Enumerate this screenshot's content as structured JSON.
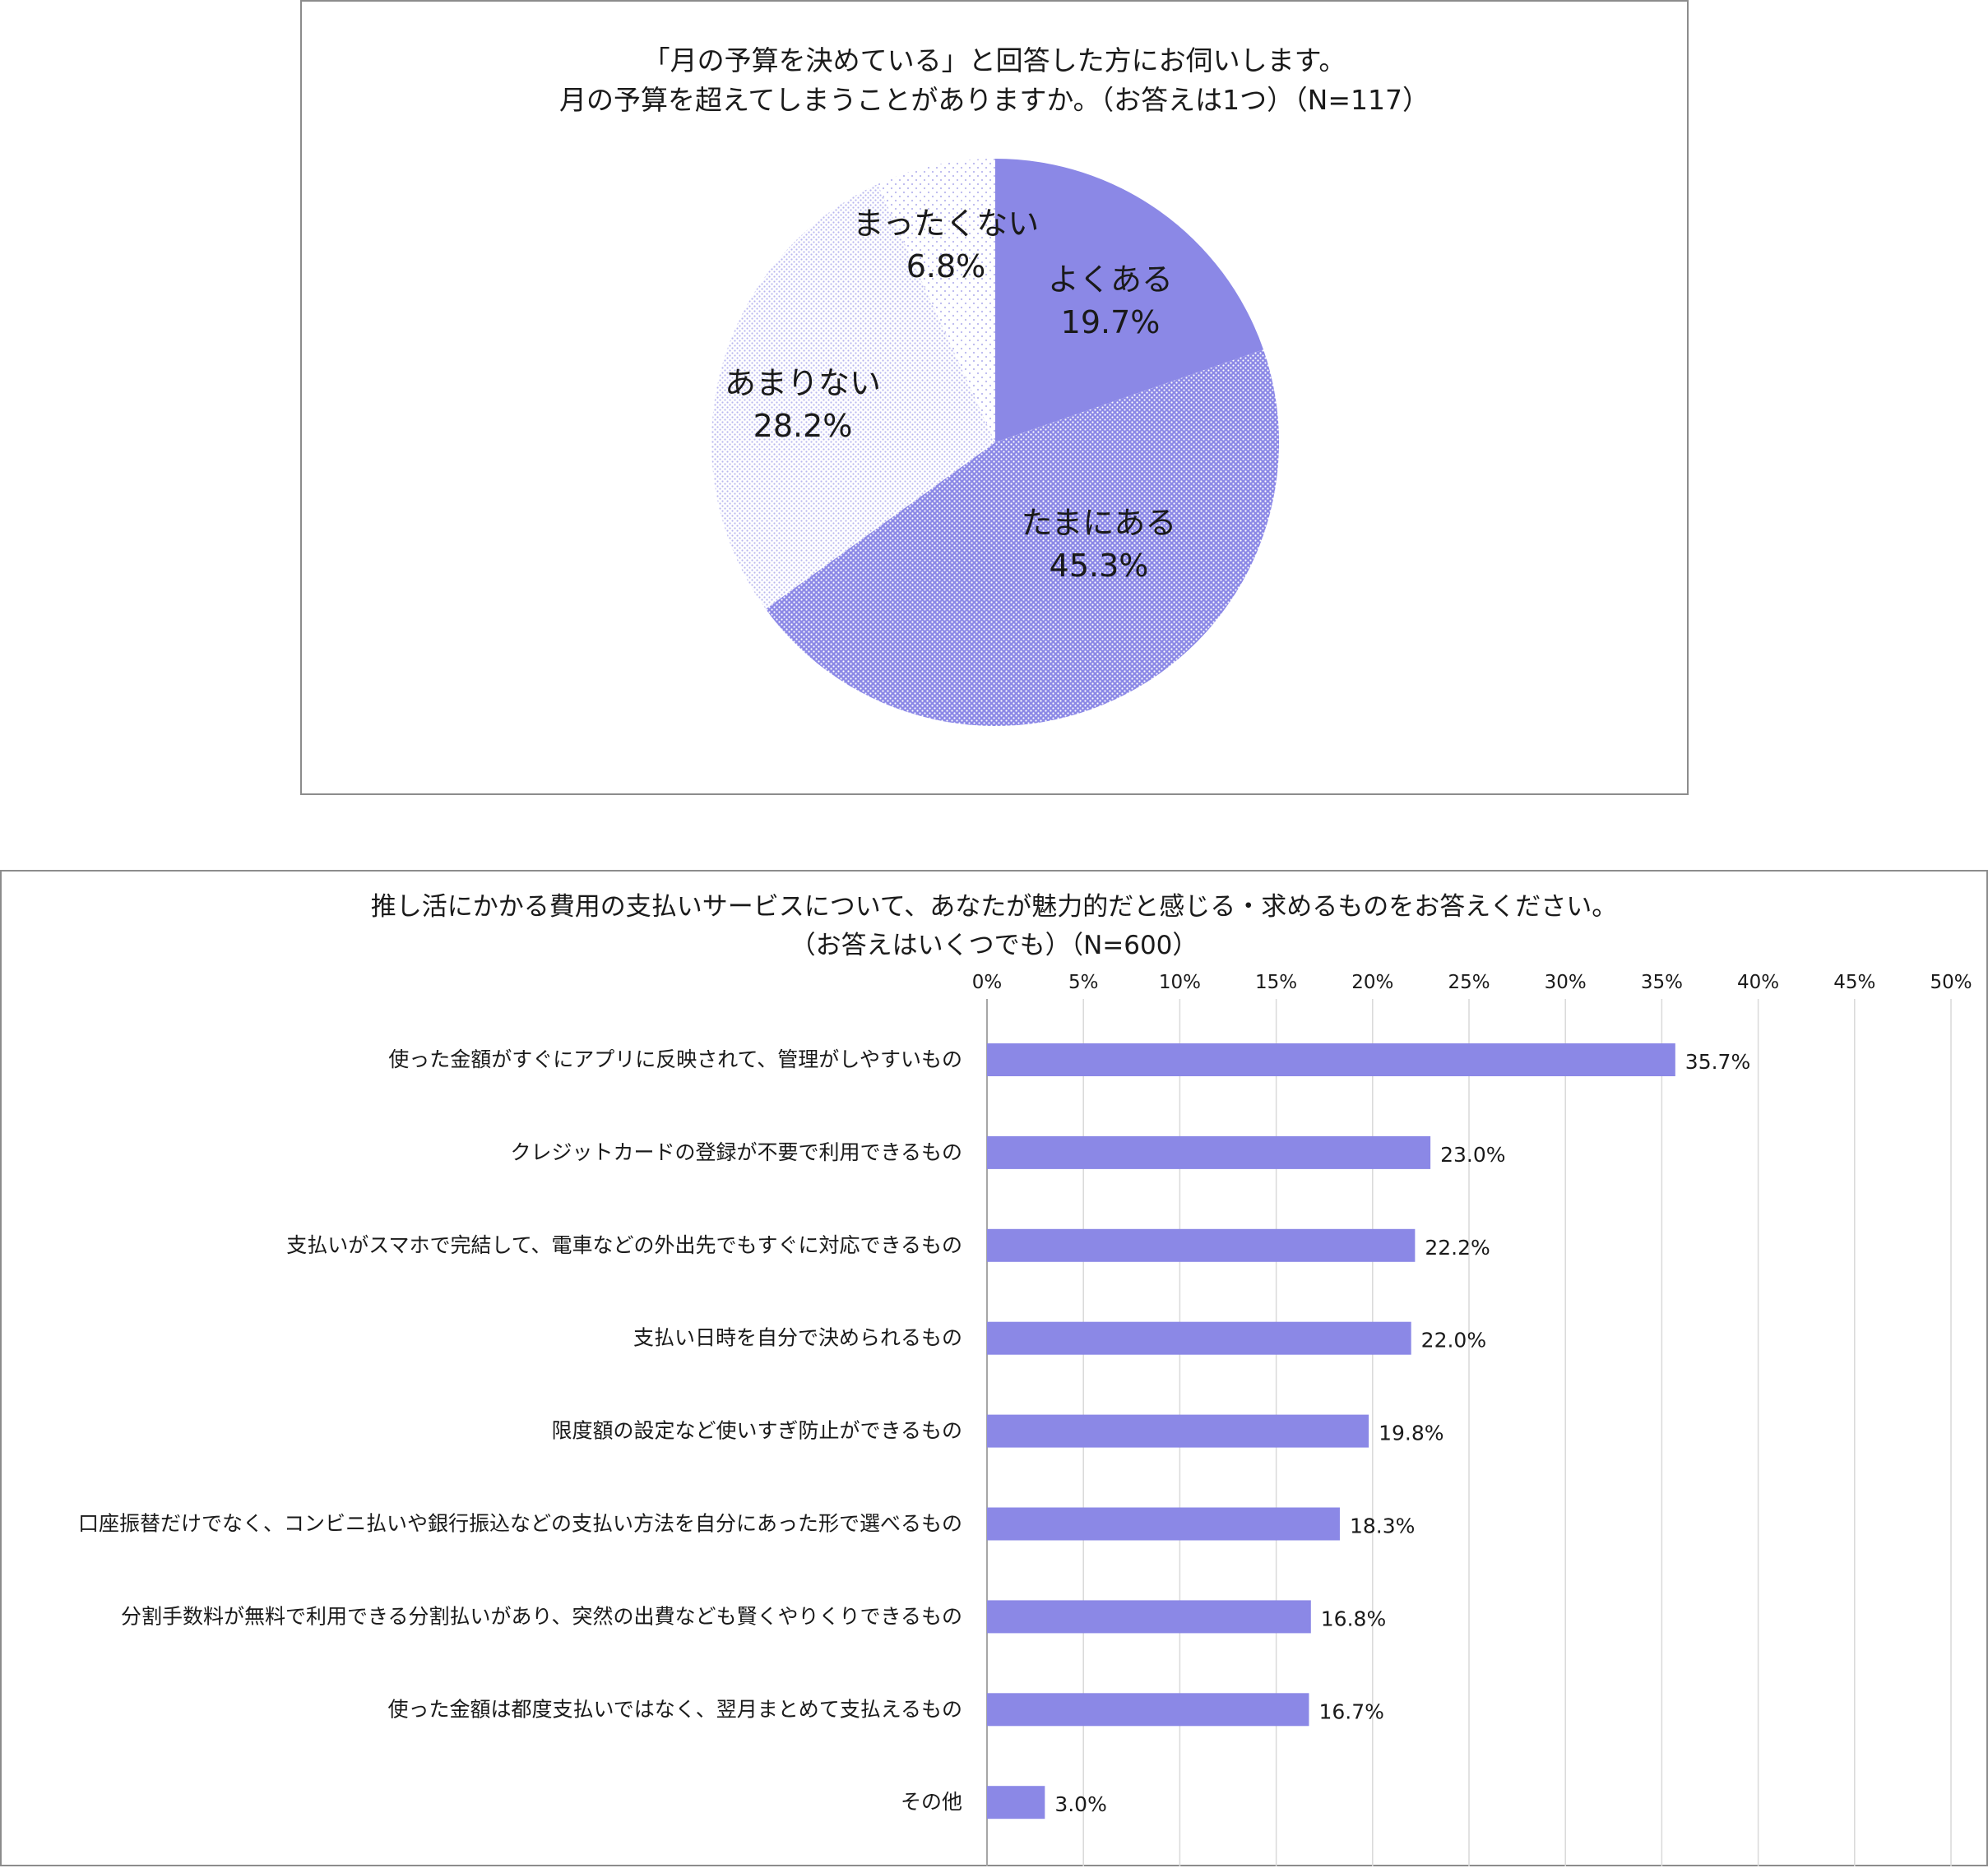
{
  "colors": {
    "accent": "#8b88e6",
    "grid": "#d9d9d9",
    "border": "#8c8c8c"
  },
  "chart_data": [
    {
      "type": "pie",
      "title_lines": [
        "「月の予算を決めている」と回答した方にお伺いします。",
        "月の予算を超えてしまうことがありますか。（お答えは1つ）（N=117）"
      ],
      "slices": [
        {
          "label": "よくある",
          "value": 19.7,
          "value_label": "19.7%",
          "fill": "solid"
        },
        {
          "label": "たまにある",
          "value": 45.3,
          "value_label": "45.3%",
          "fill": "dense-dots"
        },
        {
          "label": "あまりない",
          "value": 28.2,
          "value_label": "28.2%",
          "fill": "light-dots"
        },
        {
          "label": "まったくない",
          "value": 6.8,
          "value_label": "6.8%",
          "fill": "sparse-dots"
        }
      ]
    },
    {
      "type": "bar",
      "orientation": "horizontal",
      "title_lines": [
        "推し活にかかる費用の支払いサービスについて、あなたが魅力的だと感じる・求めるものをお答えください。",
        "（お答えはいくつでも）（N=600）"
      ],
      "xlim": [
        0,
        50
      ],
      "ticks": [
        {
          "value": 0,
          "label": "0%"
        },
        {
          "value": 5,
          "label": "5%"
        },
        {
          "value": 10,
          "label": "10%"
        },
        {
          "value": 15,
          "label": "15%"
        },
        {
          "value": 20,
          "label": "20%"
        },
        {
          "value": 25,
          "label": "25%"
        },
        {
          "value": 30,
          "label": "30%"
        },
        {
          "value": 35,
          "label": "35%"
        },
        {
          "value": 40,
          "label": "40%"
        },
        {
          "value": 45,
          "label": "45%"
        },
        {
          "value": 50,
          "label": "50%"
        }
      ],
      "grid": true,
      "bars": [
        {
          "label": "使った金額がすぐにアプリに反映されて、管理がしやすいもの",
          "value": 35.7,
          "value_label": "35.7%"
        },
        {
          "label": "クレジットカードの登録が不要で利用できるもの",
          "value": 23.0,
          "value_label": "23.0%"
        },
        {
          "label": "支払いがスマホで完結して、電車などの外出先でもすぐに対応できるもの",
          "value": 22.2,
          "value_label": "22.2%"
        },
        {
          "label": "支払い日時を自分で決められるもの",
          "value": 22.0,
          "value_label": "22.0%"
        },
        {
          "label": "限度額の設定など使いすぎ防止ができるもの",
          "value": 19.8,
          "value_label": "19.8%"
        },
        {
          "label": "口座振替だけでなく、コンビニ払いや銀行振込などの支払い方法を自分にあった形で選べるもの",
          "value": 18.3,
          "value_label": "18.3%"
        },
        {
          "label": "分割手数料が無料で利用できる分割払いがあり、突然の出費なども賢くやりくりできるもの",
          "value": 16.8,
          "value_label": "16.8%"
        },
        {
          "label": "使った金額は都度支払いではなく、翌月まとめて支払えるもの",
          "value": 16.7,
          "value_label": "16.7%"
        },
        {
          "label": "その他",
          "value": 3.0,
          "value_label": "3.0%"
        }
      ]
    }
  ]
}
